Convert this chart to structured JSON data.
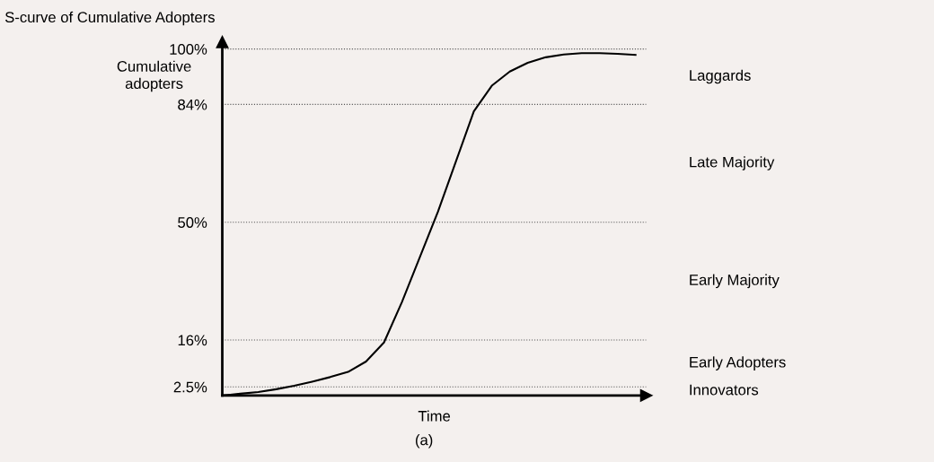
{
  "chart_data": {
    "type": "line",
    "title": "S-curve of Cumulative Adopters",
    "ylabel": "Cumulative adopters",
    "xlabel": "Time",
    "annotations": [
      "(a)",
      "Innovators",
      "Early Adopters",
      "Early Majority",
      "Late Majority",
      "Laggards"
    ],
    "categories": [
      null,
      null,
      null,
      null,
      null,
      null,
      null,
      null,
      null,
      null,
      null,
      null,
      null,
      null,
      null,
      null,
      null,
      null,
      null,
      null,
      null,
      null,
      null,
      null
    ],
    "series": [
      {
        "color": "#000000",
        "values": [
          0,
          0.5,
          1,
          1.8,
          2.8,
          4,
          5.3,
          6.8,
          9.8,
          15.3,
          27,
          40,
          53,
          67.5,
          82,
          89.4,
          93.5,
          96,
          97.6,
          98.4,
          98.8,
          98.8,
          98.6,
          98.3
        ]
      }
    ],
    "ylim": [
      0,
      102
    ],
    "yticks": [
      {
        "value": 2.5,
        "label": "2.5%"
      },
      {
        "value": 16,
        "label": "16%"
      },
      {
        "value": 50,
        "label": "50%"
      },
      {
        "value": 84,
        "label": "84%"
      },
      {
        "value": 100,
        "label": "100%"
      }
    ],
    "grid": "y",
    "tick_labels": "y",
    "marker": "none",
    "line_style": "solid"
  }
}
